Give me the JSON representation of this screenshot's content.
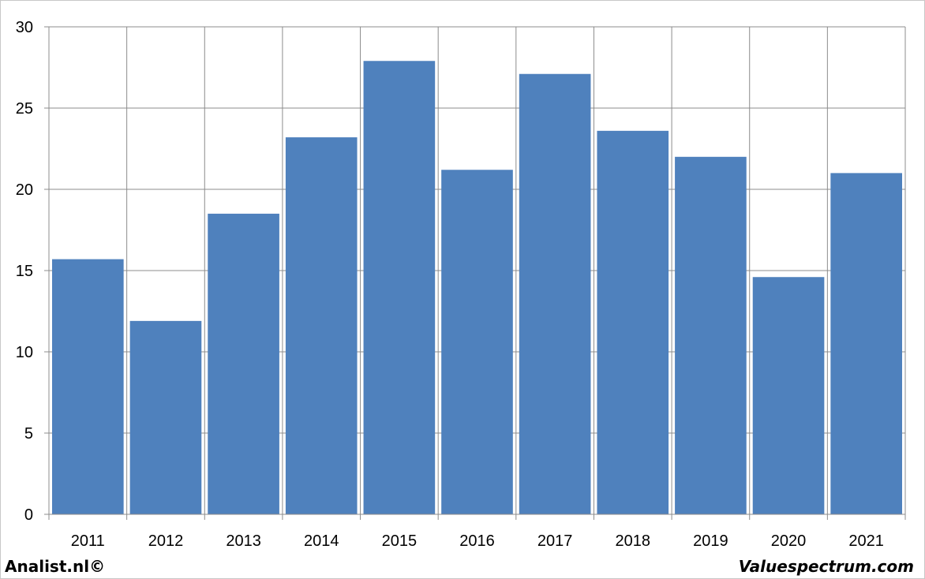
{
  "chart_data": {
    "type": "bar",
    "categories": [
      "2011",
      "2012",
      "2013",
      "2014",
      "2015",
      "2016",
      "2017",
      "2018",
      "2019",
      "2020",
      "2021"
    ],
    "values": [
      15.7,
      11.9,
      18.5,
      23.2,
      27.9,
      21.2,
      27.1,
      23.6,
      22.0,
      14.6,
      21.0
    ],
    "ylim": [
      0,
      30
    ],
    "yticks": [
      0,
      5,
      10,
      15,
      20,
      25,
      30
    ],
    "grid": true,
    "bar_color": "#4f81bd",
    "title": "",
    "xlabel": "",
    "ylabel": ""
  },
  "footer": {
    "left": "Analist.nl©",
    "right": "Valuespectrum.com"
  }
}
